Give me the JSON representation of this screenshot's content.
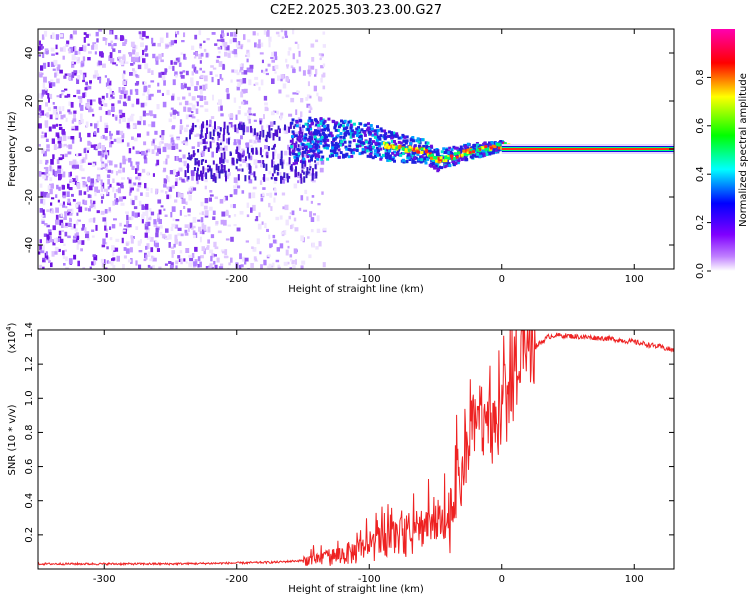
{
  "figure_title": "C2E2.2025.303.23.00.G27",
  "chart_data": [
    {
      "type": "heatmap",
      "name": "spectrogram",
      "xlabel": "Height of straight line (km)",
      "ylabel": "Frequency (Hz)",
      "xlim": [
        -350,
        130
      ],
      "ylim": [
        -50,
        50
      ],
      "x_ticks": [
        -300,
        -200,
        -100,
        0,
        100
      ],
      "y_ticks": [
        -40,
        -20,
        0,
        20,
        40
      ],
      "colorbar": {
        "label": "Normalized spectral amplitude",
        "range": [
          0.0,
          1.0
        ],
        "ticks": [
          0.0,
          0.2,
          0.4,
          0.6,
          0.8
        ],
        "tick_labels": [
          "0.0",
          "0.2",
          "0.4",
          "0.6",
          "0.8"
        ],
        "colors": [
          "#ffffff",
          "#a000ff",
          "#0000ff",
          "#00ffff",
          "#00ff00",
          "#ffff00",
          "#ff0000",
          "#ff00a0"
        ]
      },
      "ridge": {
        "x": [
          -160,
          -120,
          -100,
          -80,
          -60,
          -50,
          -40,
          -30,
          -20,
          -10,
          0,
          20,
          60,
          100,
          130
        ],
        "y": [
          4,
          5,
          4,
          1,
          0,
          -4,
          -3,
          -1,
          0,
          1,
          2,
          1,
          0,
          0,
          0
        ]
      },
      "noise_region_x": [
        -350,
        -140
      ]
    },
    {
      "type": "line",
      "name": "snr",
      "xlabel": "Height of straight line (km)",
      "ylabel": "SNR (10 * v/v)",
      "scale_note": "(x10",
      "scale_exp": "4",
      "xlim": [
        -350,
        130
      ],
      "ylim": [
        0,
        1.4
      ],
      "x_ticks": [
        -300,
        -200,
        -100,
        0,
        100
      ],
      "y_ticks": [
        0.2,
        0.4,
        0.6,
        0.8,
        1.0,
        1.2,
        1.4
      ],
      "y_tick_labels": [
        "0.2",
        "0.4",
        "0.6",
        "0.8",
        "1.0",
        "1.2",
        "1.4"
      ],
      "color": "#ee2222",
      "series": [
        {
          "name": "SNR",
          "x": [
            -350,
            -300,
            -250,
            -200,
            -170,
            -150,
            -130,
            -110,
            -100,
            -90,
            -80,
            -70,
            -60,
            -50,
            -45,
            -40,
            -35,
            -30,
            -25,
            -20,
            -15,
            -10,
            -5,
            0,
            5,
            10,
            15,
            20,
            25,
            30,
            35,
            40,
            60,
            80,
            100,
            120,
            130
          ],
          "y": [
            0.03,
            0.03,
            0.03,
            0.035,
            0.04,
            0.05,
            0.07,
            0.1,
            0.12,
            0.16,
            0.2,
            0.18,
            0.25,
            0.3,
            0.22,
            0.28,
            0.45,
            0.55,
            0.7,
            0.85,
            0.9,
            0.8,
            0.75,
            0.85,
            1.0,
            1.1,
            1.2,
            1.25,
            1.3,
            1.33,
            1.36,
            1.37,
            1.36,
            1.35,
            1.33,
            1.3,
            1.28
          ]
        }
      ]
    }
  ]
}
